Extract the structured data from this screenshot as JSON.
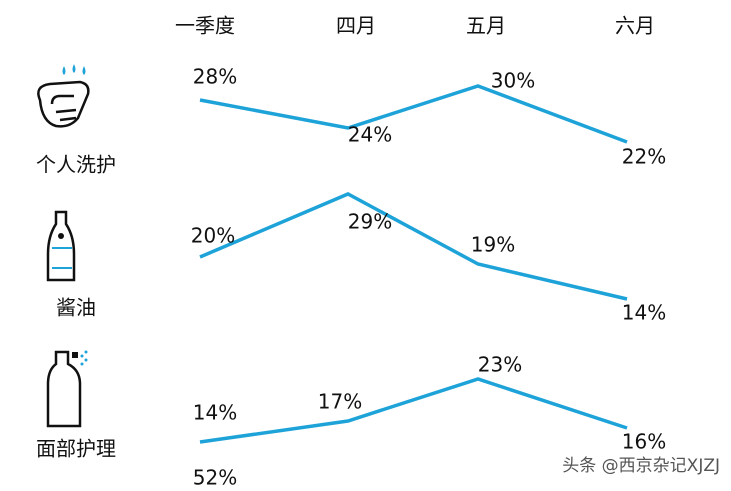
{
  "chart_data": {
    "type": "line",
    "categories": [
      "一季度",
      "四月",
      "五月",
      "六月"
    ],
    "series": [
      {
        "name": "个人洗护",
        "color": "#1ea3d9",
        "values": [
          28,
          24,
          30,
          22
        ],
        "value_labels": [
          "28%",
          "24%",
          "30%",
          "22%"
        ]
      },
      {
        "name": "酱油",
        "color": "#1ea3d9",
        "values": [
          20,
          29,
          19,
          14
        ],
        "value_labels": [
          "20%",
          "29%",
          "19%",
          "14%"
        ]
      },
      {
        "name": "面部护理",
        "color": "#1ea3d9",
        "values": [
          14,
          17,
          23,
          16
        ],
        "value_labels": [
          "14%",
          "17%",
          "23%",
          "16%"
        ]
      }
    ],
    "annotations": [
      "52%"
    ],
    "watermark": "头条 @西京杂记XJZJ"
  }
}
